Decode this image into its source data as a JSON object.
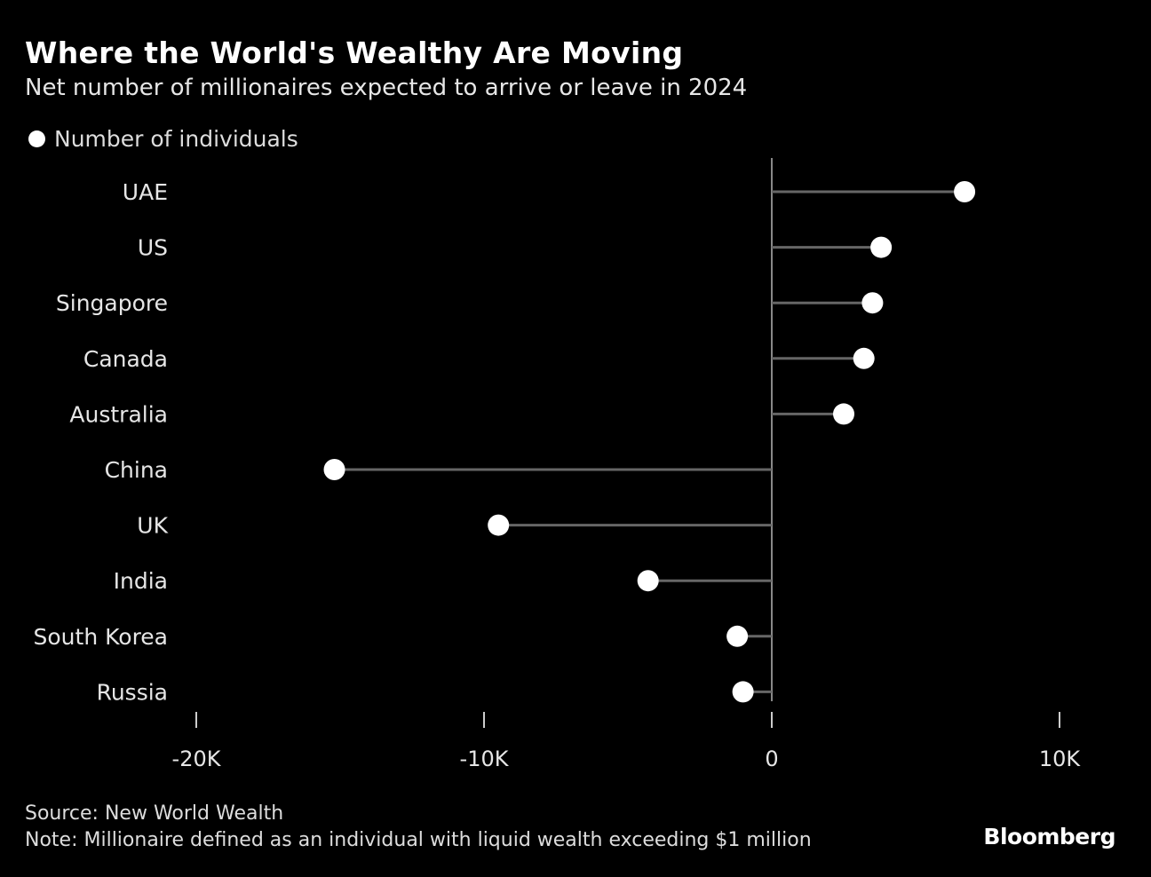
{
  "title": "Where the World's Wealthy Are Moving",
  "subtitle": "Net number of millionaires expected to arrive or leave in 2024",
  "source": "Source: New World Wealth",
  "note": "Note: Millionaire defined as an individual with liquid wealth exceeding $1 million",
  "logo": "Bloomberg",
  "colors": {
    "background": "#000000",
    "dot": "#ffffff",
    "stem": "#666666",
    "axis": "#888888"
  },
  "chart_data": {
    "type": "lollipop",
    "legend": [
      "Number of individuals"
    ],
    "legend_placement": "top-left",
    "categories": [
      "UAE",
      "US",
      "Singapore",
      "Canada",
      "Australia",
      "China",
      "UK",
      "India",
      "South Korea",
      "Russia"
    ],
    "series": [
      {
        "name": "Number of individuals",
        "values": [
          6700,
          3800,
          3500,
          3200,
          2500,
          -15200,
          -9500,
          -4300,
          -1200,
          -1000
        ]
      }
    ],
    "xlim": [
      -20000,
      12000
    ],
    "xticks": [
      -20000,
      -10000,
      0,
      10000
    ],
    "xtick_labels": [
      "-20K",
      "-10K",
      "0",
      "10K"
    ],
    "grid": false
  }
}
